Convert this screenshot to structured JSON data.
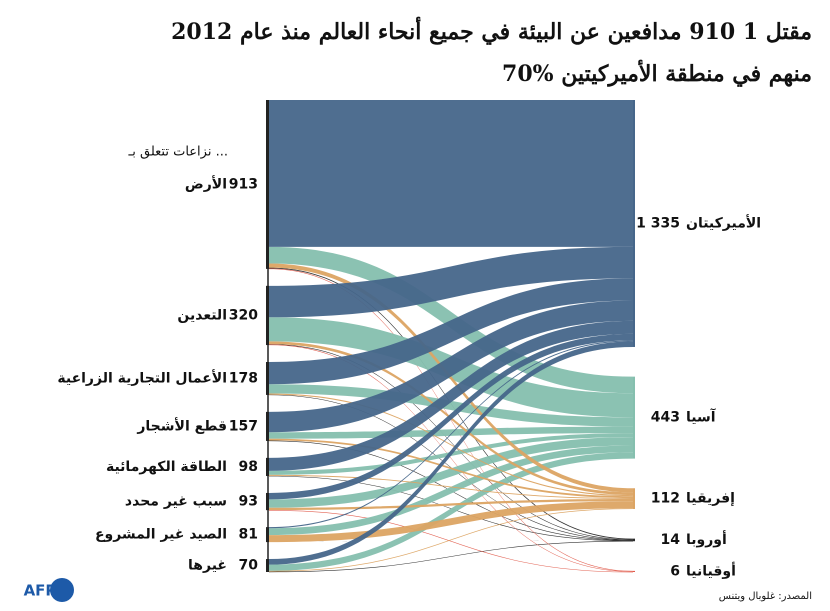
{
  "chart_data": {
    "type": "sankey",
    "title": "مقتل 1 910 مدافعين عن البيئة في جميع أنحاء العالم منذ عام 2012",
    "subtitle": "70% منهم في منطقة الأميركيتين",
    "sources_heading": "نزاعات تتعلق بـ ...",
    "sources": {
      "names": [
        "الأرض",
        "التعدين",
        "الأعمال التجارية الزراعية",
        "قطع الأشجار",
        "الطاقة الكهرمائية",
        "سبب غير محدد",
        "الصيد غير المشروع",
        "غيرها"
      ],
      "values": [
        913,
        320,
        178,
        157,
        98,
        93,
        81,
        70
      ]
    },
    "targets": {
      "names": [
        "الأميركيتان",
        "آسيا",
        "إفريقيا",
        "أوروبا",
        "أوقيانيا"
      ],
      "values": [
        1335,
        443,
        112,
        14,
        6
      ],
      "value_labels": [
        "1 335",
        "443",
        "112",
        "14",
        "6"
      ],
      "colors": [
        "#46668a",
        "#85bfae",
        "#dca463",
        "#2b2b2b",
        "#e05a4a"
      ]
    },
    "flows": [
      [
        794,
        90,
        22,
        5,
        2
      ],
      [
        170,
        130,
        15,
        2,
        3
      ],
      [
        120,
        50,
        6,
        2,
        0
      ],
      [
        110,
        35,
        10,
        2,
        0
      ],
      [
        70,
        22,
        5,
        1,
        0
      ],
      [
        35,
        45,
        12,
        0,
        1
      ],
      [
        6,
        37,
        38,
        0,
        0
      ],
      [
        30,
        34,
        4,
        2,
        0
      ]
    ],
    "note": "المصدر: غلوبال ويتنس",
    "logo": "AFP"
  }
}
